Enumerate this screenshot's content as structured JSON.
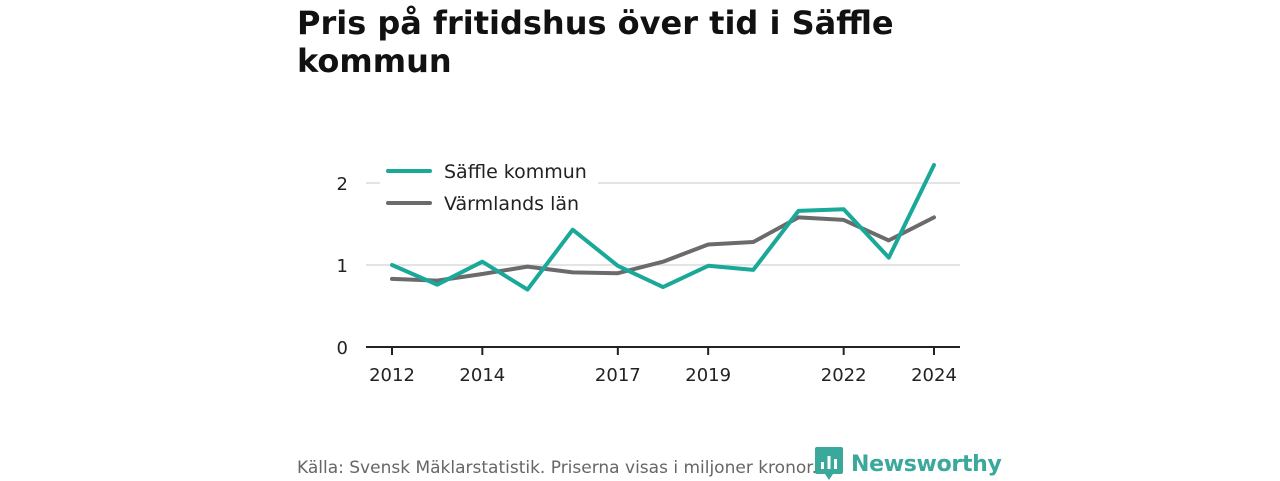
{
  "title": "Pris på fritidshus över tid i Säffle kommun",
  "source": "Källa: Svensk Mäklarstatistik. Priserna visas i miljoner kronor.",
  "brand": "Newsworthy",
  "brand_icon": "newsworthy-logo-icon",
  "colors": {
    "saffle": "#1aa898",
    "varmland": "#6b6b6e",
    "grid": "#dcdcdc",
    "axis": "#222222",
    "brand": "#3aa89b"
  },
  "chart_data": {
    "type": "line",
    "x": [
      2012,
      2013,
      2014,
      2015,
      2016,
      2017,
      2018,
      2019,
      2020,
      2021,
      2022,
      2023,
      2024
    ],
    "x_tick_labels": [
      "2012",
      "2014",
      "2017",
      "2019",
      "2022",
      "2024"
    ],
    "y_tick_labels": [
      "0",
      "1",
      "2"
    ],
    "ylim": [
      0,
      2.3
    ],
    "grid": true,
    "legend_position": "top-left",
    "series": [
      {
        "name": "Säffle kommun",
        "values": [
          1.0,
          0.76,
          1.04,
          0.7,
          1.43,
          0.99,
          0.73,
          0.99,
          0.94,
          1.66,
          1.68,
          1.09,
          2.22
        ]
      },
      {
        "name": "Värmlands län",
        "values": [
          0.83,
          0.81,
          0.89,
          0.98,
          0.91,
          0.9,
          1.04,
          1.25,
          1.28,
          1.58,
          1.55,
          1.3,
          1.58
        ]
      }
    ]
  }
}
